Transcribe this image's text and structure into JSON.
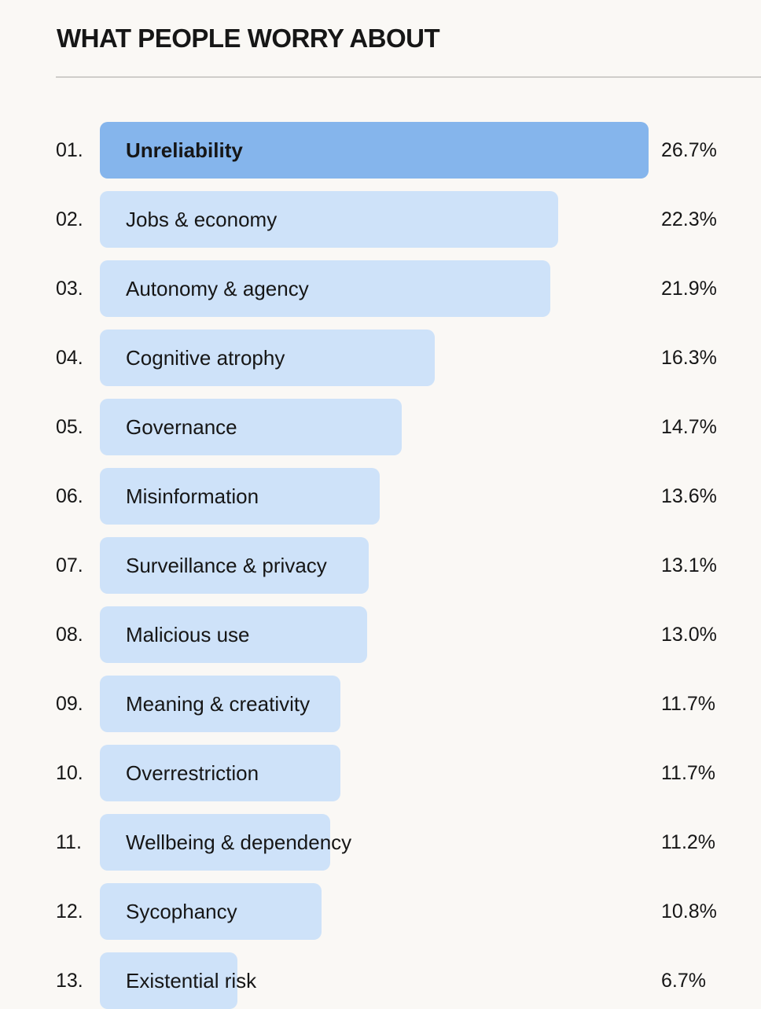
{
  "chart_data": {
    "type": "bar",
    "orientation": "horizontal",
    "title": "WHAT PEOPLE WORRY ABOUT",
    "value_format": "percent",
    "highlight_color": "#85b5ec",
    "bar_color": "#cee2f9",
    "grid": false,
    "items": [
      {
        "rank": "01.",
        "label": "Unreliability",
        "value": 26.7,
        "value_label": "26.7%",
        "highlight": true
      },
      {
        "rank": "02.",
        "label": "Jobs & economy",
        "value": 22.3,
        "value_label": "22.3%"
      },
      {
        "rank": "03.",
        "label": "Autonomy & agency",
        "value": 21.9,
        "value_label": "21.9%"
      },
      {
        "rank": "04.",
        "label": "Cognitive atrophy",
        "value": 16.3,
        "value_label": "16.3%"
      },
      {
        "rank": "05.",
        "label": "Governance",
        "value": 14.7,
        "value_label": "14.7%"
      },
      {
        "rank": "06.",
        "label": "Misinformation",
        "value": 13.6,
        "value_label": "13.6%"
      },
      {
        "rank": "07.",
        "label": "Surveillance & privacy",
        "value": 13.1,
        "value_label": "13.1%"
      },
      {
        "rank": "08.",
        "label": "Malicious use",
        "value": 13.0,
        "value_label": "13.0%"
      },
      {
        "rank": "09.",
        "label": "Meaning & creativity",
        "value": 11.7,
        "value_label": "11.7%"
      },
      {
        "rank": "10.",
        "label": "Overrestriction",
        "value": 11.7,
        "value_label": "11.7%"
      },
      {
        "rank": "11.",
        "label": "Wellbeing & dependency",
        "value": 11.2,
        "value_label": "11.2%"
      },
      {
        "rank": "12.",
        "label": "Sycophancy",
        "value": 10.8,
        "value_label": "10.8%"
      },
      {
        "rank": "13.",
        "label": "Existential risk",
        "value": 6.7,
        "value_label": "6.7%"
      }
    ]
  }
}
